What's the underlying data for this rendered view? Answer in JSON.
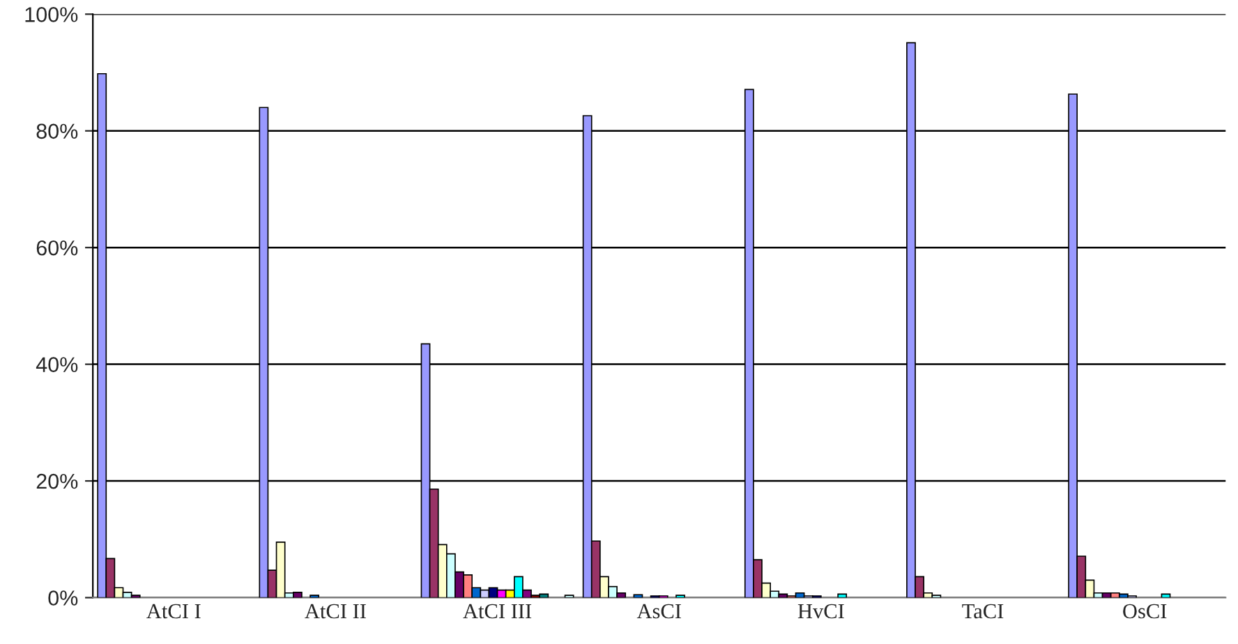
{
  "chart_data": {
    "type": "bar",
    "categories": [
      "AtCI I",
      "AtCI II",
      "AtCI III",
      "AsCI",
      "HvCI",
      "TaCI",
      "OsCI"
    ],
    "series": [
      {
        "color": "#9999ff",
        "values": [
          89.8,
          84.0,
          43.5,
          82.6,
          87.1,
          95.1,
          86.3
        ]
      },
      {
        "color": "#993366",
        "values": [
          6.7,
          4.7,
          18.6,
          9.7,
          6.5,
          3.6,
          7.1
        ]
      },
      {
        "color": "#ffffcc",
        "values": [
          1.7,
          9.5,
          9.1,
          3.6,
          2.5,
          0.8,
          3.0
        ]
      },
      {
        "color": "#ccffff",
        "values": [
          0.9,
          0.8,
          7.5,
          1.9,
          1.1,
          0.4,
          0.8
        ]
      },
      {
        "color": "#660066",
        "values": [
          0.4,
          0.9,
          4.4,
          0.8,
          0.6,
          null,
          0.8
        ]
      },
      {
        "color": "#ff8080",
        "values": [
          null,
          null,
          3.9,
          null,
          0.3,
          null,
          0.8
        ]
      },
      {
        "color": "#0066cc",
        "values": [
          null,
          0.4,
          1.7,
          0.5,
          0.8,
          null,
          0.6
        ]
      },
      {
        "color": "#ccccff",
        "values": [
          null,
          null,
          1.3,
          null,
          0.3,
          null,
          0.3
        ]
      },
      {
        "color": "#000080",
        "values": [
          null,
          null,
          1.7,
          0.3,
          0.3,
          null,
          null
        ]
      },
      {
        "color": "#ff00ff",
        "values": [
          null,
          null,
          1.3,
          0.3,
          null,
          null,
          null
        ]
      },
      {
        "color": "#ffff00",
        "values": [
          null,
          null,
          1.3,
          null,
          null,
          null,
          null
        ]
      },
      {
        "color": "#00ffff",
        "values": [
          null,
          null,
          3.6,
          0.4,
          0.6,
          null,
          0.6
        ]
      },
      {
        "color": "#800080",
        "values": [
          null,
          null,
          1.3,
          null,
          null,
          null,
          null
        ]
      },
      {
        "color": "#800000",
        "values": [
          null,
          null,
          0.4,
          null,
          null,
          null,
          null
        ]
      },
      {
        "color": "#008080",
        "values": [
          null,
          null,
          0.6,
          null,
          null,
          null,
          null
        ]
      },
      {
        "values": [
          null,
          null,
          null,
          null,
          null,
          null,
          null
        ]
      },
      {
        "values": [
          null,
          null,
          null,
          null,
          null,
          null,
          null
        ]
      },
      {
        "color": "#ccffff",
        "values": [
          null,
          null,
          0.4,
          null,
          null,
          null,
          null
        ]
      }
    ],
    "ylim": [
      0,
      100
    ],
    "yticks": [
      {
        "value": 0,
        "label": "0%"
      },
      {
        "value": 20,
        "label": "20%"
      },
      {
        "value": 40,
        "label": "40%"
      },
      {
        "value": 60,
        "label": "60%"
      },
      {
        "value": 80,
        "label": "80%"
      },
      {
        "value": 100,
        "label": "100%"
      }
    ],
    "grid": "y",
    "legend": false
  }
}
